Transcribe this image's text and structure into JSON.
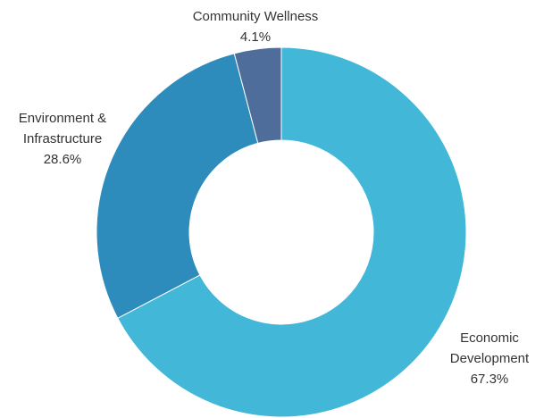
{
  "chart_data": {
    "type": "pie",
    "variant": "donut",
    "title": "",
    "slices": [
      {
        "name": "Economic Development",
        "label_lines": [
          "Economic",
          "Development"
        ],
        "value": 67.3,
        "value_label": "67.3%",
        "color": "#42b7d8"
      },
      {
        "name": "Environment & Infrastructure",
        "label_lines": [
          "Environment &",
          "Infrastructure"
        ],
        "value": 28.6,
        "value_label": "28.6%",
        "color": "#2e8cbc"
      },
      {
        "name": "Community Wellness",
        "label_lines": [
          "Community Wellness"
        ],
        "value": 4.1,
        "value_label": "4.1%",
        "color": "#4e6d9a"
      }
    ],
    "start_angle_deg": 0,
    "direction": "clockwise",
    "legend": "none",
    "data_labels": "outside"
  }
}
